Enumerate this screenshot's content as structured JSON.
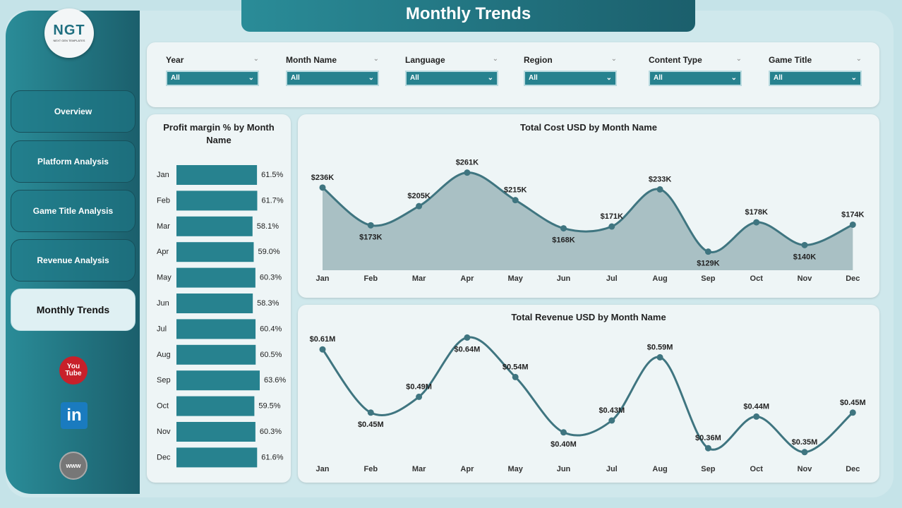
{
  "header": {
    "title": "Monthly Trends"
  },
  "logo": {
    "text": "NGT",
    "subtext": "NEXT GEN TEMPLATES"
  },
  "sidebar": {
    "items": [
      {
        "label": "Overview"
      },
      {
        "label": "Platform Analysis"
      },
      {
        "label": "Game Title Analysis"
      },
      {
        "label": "Revenue Analysis"
      },
      {
        "label": "Monthly Trends",
        "active": true
      }
    ],
    "social": [
      {
        "icon": "youtube-icon",
        "label": "You Tube"
      },
      {
        "icon": "linkedin-icon",
        "label": "in"
      },
      {
        "icon": "globe-www-icon",
        "label": "www"
      }
    ]
  },
  "filters": [
    {
      "label": "Year",
      "value": "All"
    },
    {
      "label": "Month Name",
      "value": "All"
    },
    {
      "label": "Language",
      "value": "All"
    },
    {
      "label": "Region",
      "value": "All"
    },
    {
      "label": "Content Type",
      "value": "All"
    },
    {
      "label": "Game Title",
      "value": "All"
    }
  ],
  "colors": {
    "accent": "#27828f",
    "line": "#3f7580",
    "area": "#a9c0c4"
  },
  "chart_data": [
    {
      "type": "bar",
      "orientation": "horizontal",
      "title": "Profit margin % by Month Name",
      "categories": [
        "Jan",
        "Feb",
        "Mar",
        "Apr",
        "May",
        "Jun",
        "Jul",
        "Aug",
        "Sep",
        "Oct",
        "Nov",
        "Dec"
      ],
      "values": [
        61.5,
        61.7,
        58.1,
        59.0,
        60.3,
        58.3,
        60.4,
        60.5,
        63.6,
        59.5,
        60.3,
        61.6
      ],
      "labels": [
        "61.5%",
        "61.7%",
        "58.1%",
        "59.0%",
        "60.3%",
        "58.3%",
        "60.4%",
        "60.5%",
        "63.6%",
        "59.5%",
        "60.3%",
        "61.6%"
      ],
      "xlim": [
        0,
        63.6
      ]
    },
    {
      "type": "area",
      "title": "Total Cost USD by Month Name",
      "categories": [
        "Jan",
        "Feb",
        "Mar",
        "Apr",
        "May",
        "Jun",
        "Jul",
        "Aug",
        "Sep",
        "Oct",
        "Nov",
        "Dec"
      ],
      "values": [
        236,
        173,
        205,
        261,
        215,
        168,
        171,
        233,
        129,
        178,
        140,
        174
      ],
      "unit": "K USD",
      "labels": [
        "$236K",
        "$173K",
        "$205K",
        "$261K",
        "$215K",
        "$168K",
        "$171K",
        "$233K",
        "$129K",
        "$178K",
        "$140K",
        "$174K"
      ],
      "ylim": [
        98,
        270
      ]
    },
    {
      "type": "line",
      "title": "Total Revenue USD by Month Name",
      "categories": [
        "Jan",
        "Feb",
        "Mar",
        "Apr",
        "May",
        "Jun",
        "Jul",
        "Aug",
        "Sep",
        "Oct",
        "Nov",
        "Dec"
      ],
      "values": [
        0.61,
        0.45,
        0.49,
        0.64,
        0.54,
        0.4,
        0.43,
        0.59,
        0.36,
        0.44,
        0.35,
        0.45
      ],
      "unit": "M USD",
      "labels": [
        "$0.61M",
        "$0.45M",
        "$0.49M",
        "$0.64M",
        "$0.54M",
        "$0.40M",
        "$0.43M",
        "$0.59M",
        "$0.36M",
        "$0.44M",
        "$0.35M",
        "$0.45M"
      ],
      "ylim": [
        0.33,
        0.655
      ]
    }
  ]
}
